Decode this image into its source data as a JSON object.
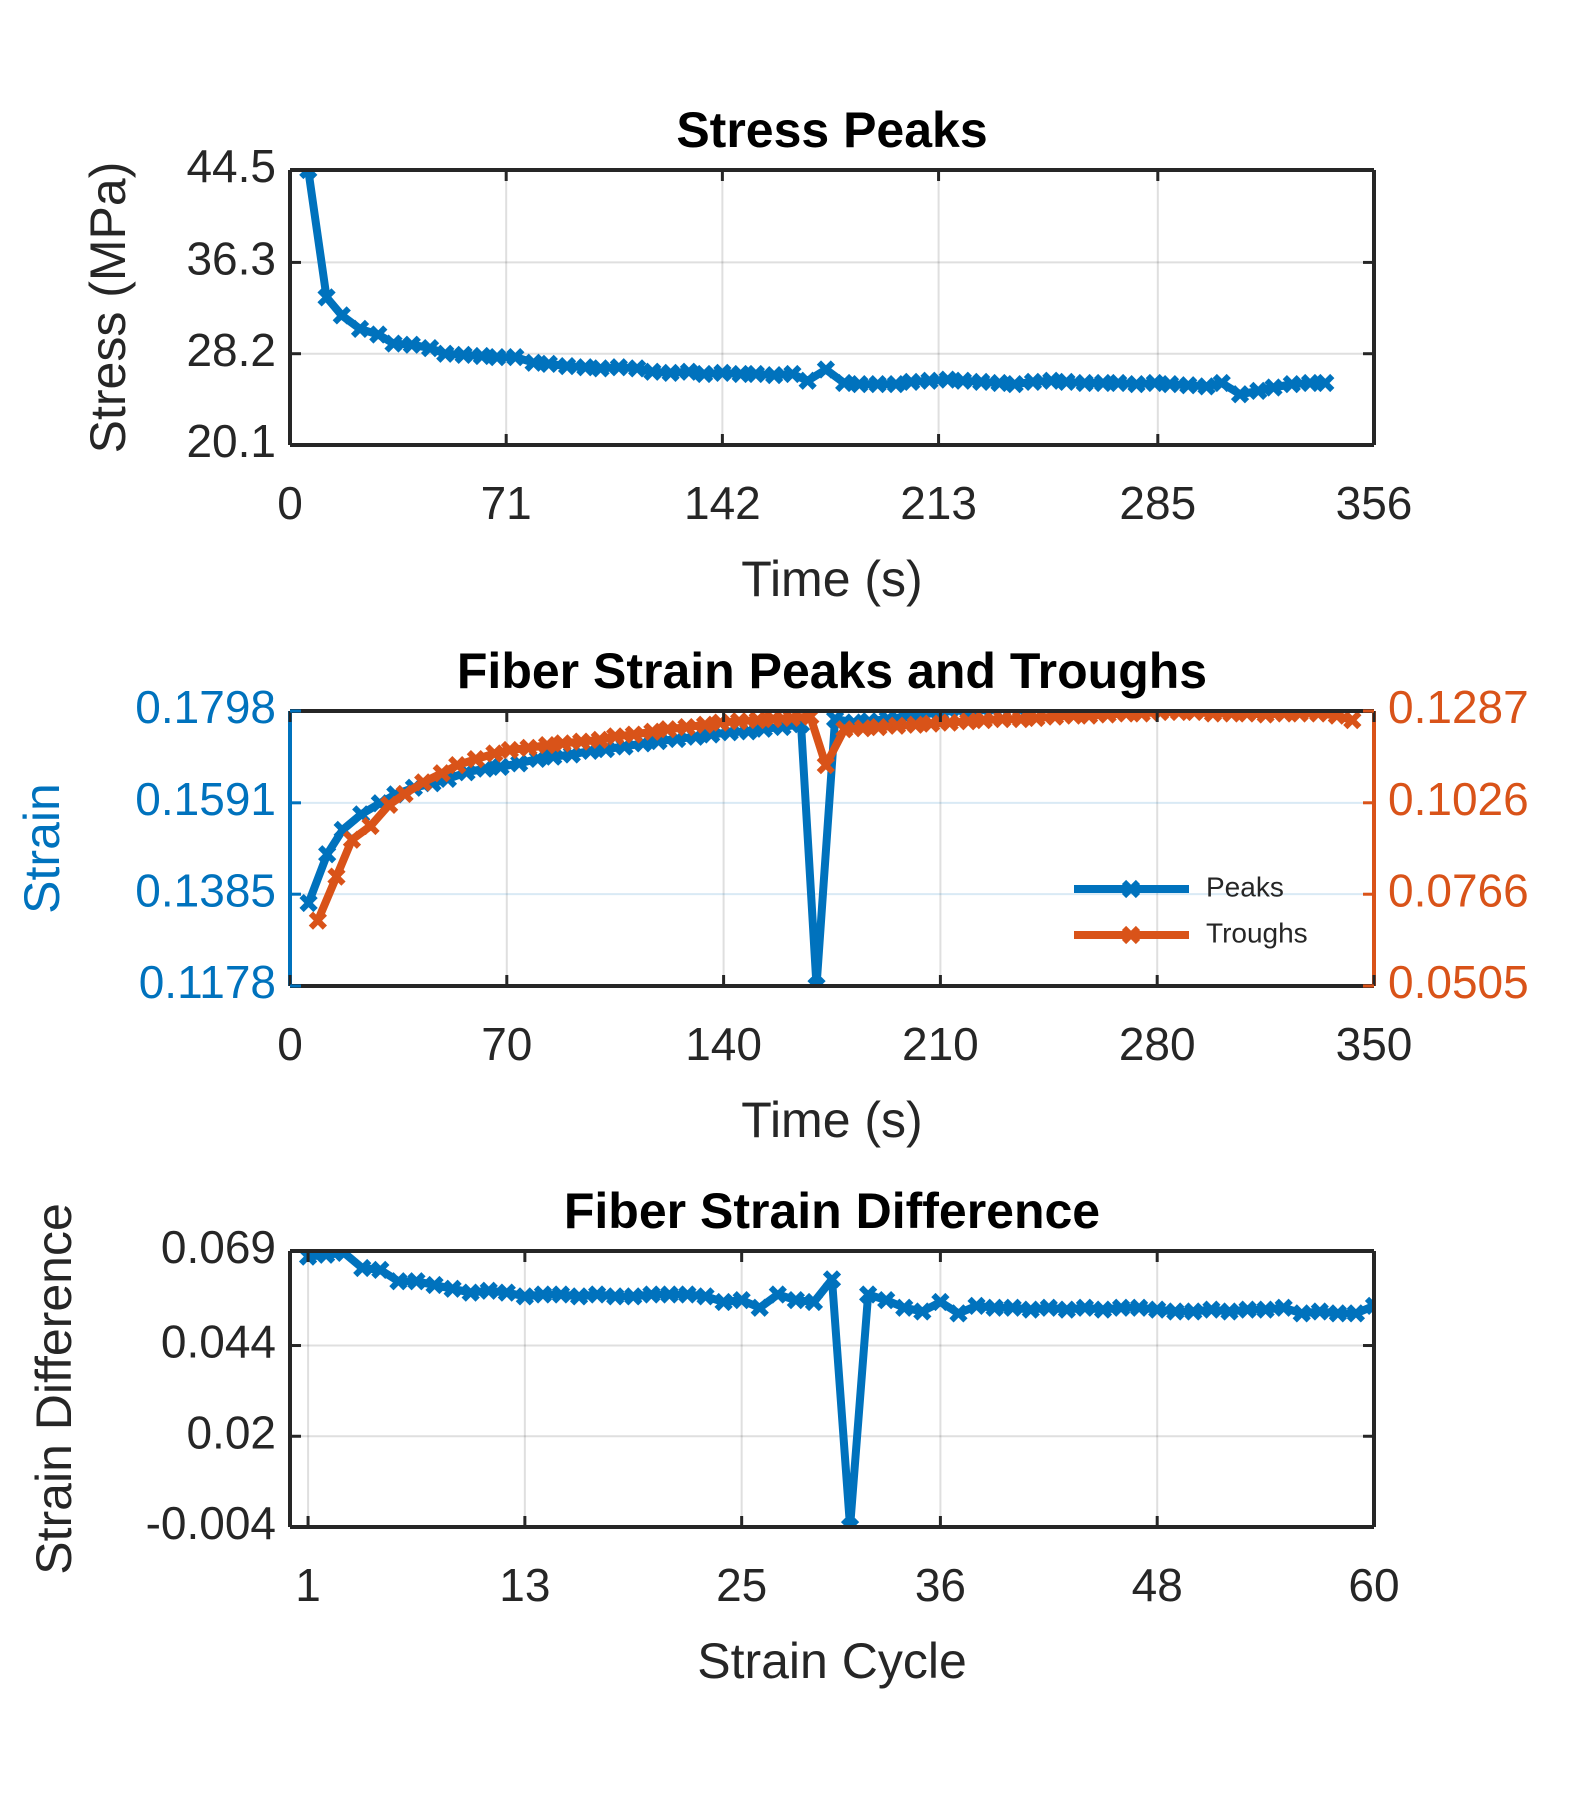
{
  "chart_data": [
    {
      "type": "line",
      "title": "Stress Peaks",
      "xlabel": "Time (s)",
      "ylabel": "Stress (MPa)",
      "x": [
        6,
        12,
        17,
        23,
        29,
        34,
        40,
        46,
        51,
        57,
        63,
        68,
        74,
        80,
        85,
        91,
        97,
        102,
        108,
        114,
        119,
        125,
        131,
        136,
        142,
        148,
        153,
        159,
        165,
        170,
        176,
        182,
        187,
        193,
        199,
        204,
        210,
        216,
        221,
        227,
        233,
        238,
        244,
        250,
        255,
        261,
        267,
        272,
        278,
        284,
        289,
        295,
        301,
        306,
        312,
        318,
        323,
        329,
        335,
        340
      ],
      "values": [
        44.5,
        33.2,
        31.6,
        30.4,
        29.9,
        29.1,
        29.0,
        28.7,
        28.2,
        28.1,
        28.0,
        27.9,
        27.9,
        27.4,
        27.3,
        27.1,
        27.0,
        26.9,
        27.0,
        26.9,
        26.6,
        26.5,
        26.6,
        26.4,
        26.5,
        26.4,
        26.4,
        26.3,
        26.4,
        25.8,
        26.8,
        25.6,
        25.5,
        25.5,
        25.5,
        25.7,
        25.8,
        25.9,
        25.8,
        25.7,
        25.6,
        25.5,
        25.7,
        25.8,
        25.7,
        25.6,
        25.6,
        25.6,
        25.5,
        25.6,
        25.5,
        25.4,
        25.3,
        25.6,
        24.6,
        24.9,
        25.2,
        25.5,
        25.6,
        25.6
      ],
      "color": "#0072bd",
      "xlim": [
        0,
        356
      ],
      "xticks": [
        0,
        71,
        142,
        213,
        285,
        356
      ],
      "ylim": [
        20.1,
        44.5
      ],
      "yticks": [
        20.1,
        28.2,
        36.3,
        44.5
      ],
      "grid": true
    },
    {
      "type": "line",
      "title": "Fiber Strain Peaks and Troughs",
      "xlabel": "Time (s)",
      "ylabel": "Strain",
      "series": [
        {
          "name": "Peaks",
          "color": "#0072bd",
          "axis": "y",
          "x": [
            6,
            12,
            17,
            23,
            29,
            34,
            40,
            46,
            51,
            57,
            63,
            68,
            74,
            80,
            85,
            91,
            97,
            102,
            108,
            114,
            119,
            125,
            131,
            136,
            142,
            148,
            153,
            159,
            165,
            170,
            176,
            182,
            187,
            193,
            199,
            204,
            210,
            216,
            221,
            227,
            233,
            238,
            244,
            250,
            255,
            261,
            267,
            272,
            278,
            284,
            289,
            295,
            301,
            306,
            312,
            318,
            323,
            329,
            335,
            340
          ],
          "values": [
            0.1365,
            0.1475,
            0.153,
            0.1565,
            0.159,
            0.161,
            0.1625,
            0.1635,
            0.1645,
            0.166,
            0.1668,
            0.1672,
            0.168,
            0.169,
            0.1695,
            0.17,
            0.1708,
            0.1712,
            0.1718,
            0.1725,
            0.173,
            0.1735,
            0.174,
            0.1745,
            0.175,
            0.1752,
            0.1758,
            0.1762,
            0.1768,
            0.1178,
            0.178,
            0.1772,
            0.1775,
            0.178,
            0.1785,
            0.179,
            0.1795,
            0.18,
            0.1798,
            0.1802,
            0.1805,
            0.1808,
            0.181,
            0.1812,
            0.1815,
            0.1815,
            0.1818,
            0.182,
            0.1822,
            0.1822,
            0.1825,
            0.1825,
            0.1826,
            0.1828,
            0.183,
            0.183,
            0.1831,
            0.1832,
            0.1833,
            0.1834
          ]
        },
        {
          "name": "Troughs",
          "color": "#d95319",
          "axis": "y2",
          "x": [
            9,
            15,
            20,
            26,
            32,
            37,
            43,
            49,
            54,
            60,
            66,
            71,
            77,
            83,
            88,
            94,
            100,
            105,
            111,
            117,
            122,
            128,
            134,
            139,
            145,
            151,
            156,
            162,
            168,
            173,
            179,
            185,
            190,
            196,
            202,
            207,
            213,
            219,
            224,
            230,
            236,
            241,
            247,
            253,
            258,
            264,
            270,
            275,
            281,
            287,
            292,
            298,
            304,
            309,
            315,
            321,
            326,
            332,
            338,
            343
          ],
          "values": [
            0.0691,
            0.0816,
            0.0921,
            0.096,
            0.102,
            0.1051,
            0.1084,
            0.111,
            0.1133,
            0.115,
            0.1166,
            0.1176,
            0.1182,
            0.119,
            0.1195,
            0.12,
            0.1205,
            0.1215,
            0.122,
            0.1228,
            0.1235,
            0.1241,
            0.1248,
            0.1254,
            0.1258,
            0.1261,
            0.1264,
            0.1267,
            0.1271,
            0.1133,
            0.1235,
            0.1238,
            0.1241,
            0.1245,
            0.1248,
            0.1251,
            0.1254,
            0.1258,
            0.1261,
            0.1264,
            0.1264,
            0.1267,
            0.1271,
            0.1274,
            0.1274,
            0.1277,
            0.128,
            0.128,
            0.1284,
            0.1284,
            0.1284,
            0.128,
            0.128,
            0.128,
            0.1277,
            0.128,
            0.128,
            0.128,
            0.1274,
            0.1261
          ]
        }
      ],
      "xlim": [
        0,
        350
      ],
      "xticks": [
        0,
        70,
        140,
        210,
        280,
        350
      ],
      "ylim": [
        0.1178,
        0.1798
      ],
      "yticks": [
        0.1178,
        0.1385,
        0.1591,
        0.1798
      ],
      "y2lim": [
        0.0505,
        0.1287
      ],
      "y2ticks": [
        0.0505,
        0.0766,
        0.1026,
        0.1287
      ],
      "grid": true,
      "legend": "southeast"
    },
    {
      "type": "line",
      "title": "Fiber Strain Difference",
      "xlabel": "Strain Cycle",
      "ylabel": "Strain Difference",
      "x": [
        1,
        2,
        3,
        4,
        5,
        6,
        7,
        8,
        9,
        10,
        11,
        12,
        13,
        14,
        15,
        16,
        17,
        18,
        19,
        20,
        21,
        22,
        23,
        24,
        25,
        26,
        27,
        28,
        29,
        30,
        31,
        32,
        33,
        34,
        35,
        36,
        37,
        38,
        39,
        40,
        41,
        42,
        43,
        44,
        45,
        46,
        47,
        48,
        49,
        50,
        51,
        52,
        53,
        54,
        55,
        56,
        57,
        58,
        59,
        60
      ],
      "values": [
        0.0675,
        0.068,
        0.0685,
        0.0645,
        0.064,
        0.061,
        0.061,
        0.06,
        0.059,
        0.058,
        0.0585,
        0.058,
        0.057,
        0.0575,
        0.0575,
        0.057,
        0.0575,
        0.057,
        0.057,
        0.0575,
        0.0575,
        0.0575,
        0.057,
        0.0555,
        0.056,
        0.054,
        0.0575,
        0.056,
        0.0555,
        0.0615,
        -0.004,
        0.0575,
        0.056,
        0.054,
        0.053,
        0.0555,
        0.0525,
        0.0545,
        0.054,
        0.054,
        0.0535,
        0.054,
        0.0535,
        0.054,
        0.0535,
        0.054,
        0.054,
        0.0535,
        0.053,
        0.053,
        0.0535,
        0.053,
        0.0535,
        0.0535,
        0.054,
        0.0525,
        0.053,
        0.0525,
        0.0525,
        0.0545
      ],
      "color": "#0072bd",
      "xlim": [
        0,
        60
      ],
      "xticks": [
        1,
        13,
        25,
        36,
        48,
        60
      ],
      "ylim": [
        -0.004,
        0.069
      ],
      "yticks": [
        -0.004,
        0.02,
        0.044,
        0.069
      ],
      "grid": true
    }
  ]
}
